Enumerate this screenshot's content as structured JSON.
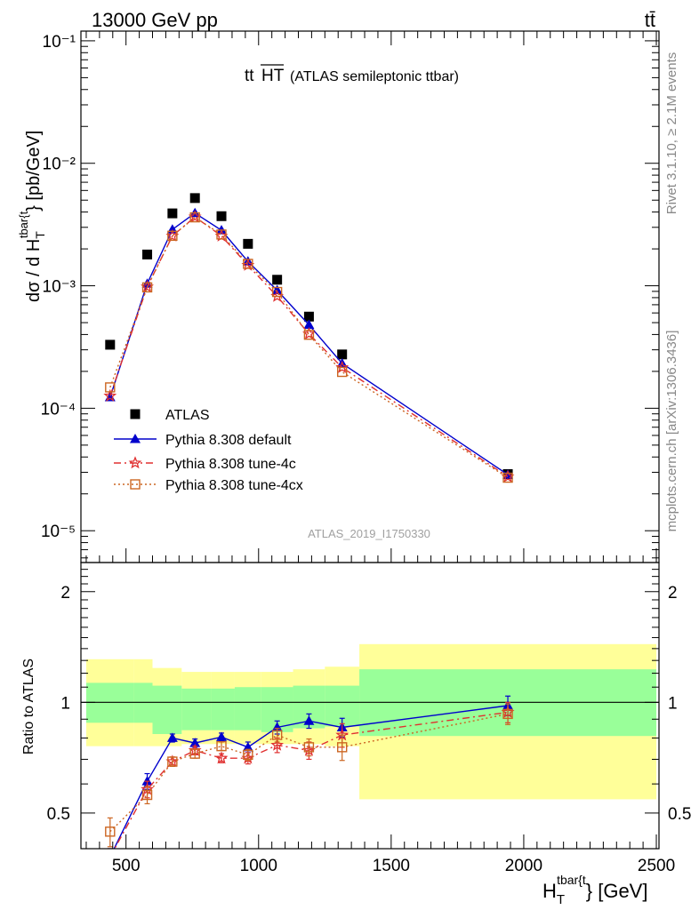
{
  "header": {
    "left_label": "13000 GeV pp",
    "right_label": "tt̄"
  },
  "side_labels": {
    "rivet": "Rivet 3.1.10, ≥ 2.1M events",
    "mcplots": "mcplots.cern.ch [arXiv:1306.3436]"
  },
  "chart_data": [
    {
      "type": "scatter",
      "title": "tt̅H̅T̅",
      "title_main": "tt",
      "title_over": "HT",
      "subtitle": "(ATLAS semileptonic ttbar)",
      "watermark": "ATLAS_2019_I1750330",
      "ylabel": "dσ / d H_T^{tbar{t}} [pb/GeV]",
      "ylabel_parts": {
        "pre": "dσ / d H",
        "sub": "T",
        "sup": "tbar{t",
        "post": "} [pb/GeV]"
      },
      "yscale": "log",
      "ylim": [
        5.5e-06,
        0.12
      ],
      "xlim": [
        330,
        2510
      ],
      "yticks": [
        "10⁻⁵",
        "10⁻⁴",
        "10⁻³",
        "10⁻²",
        "10⁻¹"
      ],
      "legend_position": "middle-left",
      "series": [
        {
          "name": "ATLAS",
          "color": "#000000",
          "marker": "square",
          "x": [
            440,
            580,
            675,
            760,
            860,
            960,
            1070,
            1190,
            1315,
            1940
          ],
          "y": [
            0.00033,
            0.0018,
            0.0039,
            0.0052,
            0.0037,
            0.0022,
            0.00112,
            0.00056,
            0.000275,
            2.9e-05
          ]
        },
        {
          "name": "Pythia 8.308 default",
          "color": "#0000cc",
          "marker": "triangle",
          "line": "solid",
          "x": [
            440,
            580,
            675,
            760,
            860,
            960,
            1070,
            1190,
            1315,
            1940
          ],
          "y": [
            0.000123,
            0.00104,
            0.00288,
            0.00392,
            0.00284,
            0.00158,
            0.00092,
            0.00048,
            0.000232,
            2.87e-05
          ]
        },
        {
          "name": "Pythia 8.308 tune-4c",
          "color": "#e03030",
          "marker": "star",
          "line": "dashdot",
          "x": [
            440,
            580,
            675,
            760,
            860,
            960,
            1070,
            1190,
            1315,
            1940
          ],
          "y": [
            0.000126,
            0.00098,
            0.00255,
            0.00365,
            0.00255,
            0.00147,
            0.00082,
            0.000405,
            0.000215,
            2.76e-05
          ]
        },
        {
          "name": "Pythia 8.308 tune-4cx",
          "color": "#cc6622",
          "marker": "open-square",
          "line": "dotted",
          "x": [
            440,
            580,
            675,
            760,
            860,
            960,
            1070,
            1190,
            1315,
            1940
          ],
          "y": [
            0.000148,
            0.00097,
            0.00256,
            0.00362,
            0.00262,
            0.00151,
            0.00089,
            0.000398,
            0.000198,
            2.71e-05
          ]
        }
      ]
    },
    {
      "type": "line",
      "ylabel": "Ratio to ATLAS",
      "xlabel": "H_T^{tbar{t}} [GeV]",
      "xlabel_parts": {
        "pre": "H",
        "sub": "T",
        "sup": "tbar{t",
        "post": "} [GeV]"
      },
      "xlim": [
        330,
        2510
      ],
      "ylim": [
        0.4,
        2.4
      ],
      "yscale": "log",
      "xticks": [
        500,
        1000,
        1500,
        2000,
        2500
      ],
      "yticks": [
        0.5,
        1,
        2
      ],
      "reference_line": 1,
      "bands": {
        "edges": [
          350,
          530,
          600,
          710,
          820,
          910,
          1010,
          1130,
          1250,
          1380,
          2500
        ],
        "inner_low": [
          0.88,
          0.88,
          0.82,
          0.84,
          0.84,
          0.84,
          0.83,
          0.85,
          0.86,
          0.81
        ],
        "inner_high": [
          1.13,
          1.13,
          1.11,
          1.09,
          1.09,
          1.1,
          1.1,
          1.11,
          1.11,
          1.23
        ],
        "outer_low": [
          0.76,
          0.76,
          0.76,
          0.77,
          0.77,
          0.77,
          0.77,
          0.77,
          0.76,
          0.545
        ],
        "outer_high": [
          1.31,
          1.31,
          1.24,
          1.21,
          1.21,
          1.21,
          1.21,
          1.23,
          1.25,
          1.44
        ]
      },
      "series": [
        {
          "name": "Pythia 8.308 default",
          "color": "#0000cc",
          "marker": "triangle",
          "line": "solid",
          "x": [
            440,
            580,
            675,
            760,
            860,
            960,
            1070,
            1190,
            1315,
            1940
          ],
          "y": [
            0.38,
            0.61,
            0.8,
            0.775,
            0.805,
            0.755,
            0.855,
            0.89,
            0.855,
            0.98
          ],
          "err": [
            0.02,
            0.03,
            0.02,
            0.02,
            0.02,
            0.025,
            0.035,
            0.04,
            0.05,
            0.06
          ]
        },
        {
          "name": "Pythia 8.308 tune-4c",
          "color": "#e03030",
          "marker": "star",
          "line": "dashdot",
          "x": [
            440,
            580,
            675,
            760,
            860,
            960,
            1070,
            1190,
            1315,
            1940
          ],
          "y": [
            0.38,
            0.58,
            0.69,
            0.74,
            0.705,
            0.705,
            0.765,
            0.74,
            0.815,
            0.94
          ],
          "err": [
            0.02,
            0.03,
            0.02,
            0.02,
            0.02,
            0.025,
            0.035,
            0.04,
            0.06,
            0.06
          ]
        },
        {
          "name": "Pythia 8.308 tune-4cx",
          "color": "#cc6622",
          "marker": "open-square",
          "line": "dotted",
          "x": [
            440,
            580,
            675,
            760,
            860,
            960,
            1070,
            1190,
            1315,
            1940
          ],
          "y": [
            0.445,
            0.56,
            0.69,
            0.725,
            0.76,
            0.72,
            0.815,
            0.755,
            0.755,
            0.93
          ],
          "err": [
            0.04,
            0.03,
            0.02,
            0.02,
            0.02,
            0.025,
            0.035,
            0.04,
            0.06,
            0.06
          ]
        }
      ]
    }
  ]
}
